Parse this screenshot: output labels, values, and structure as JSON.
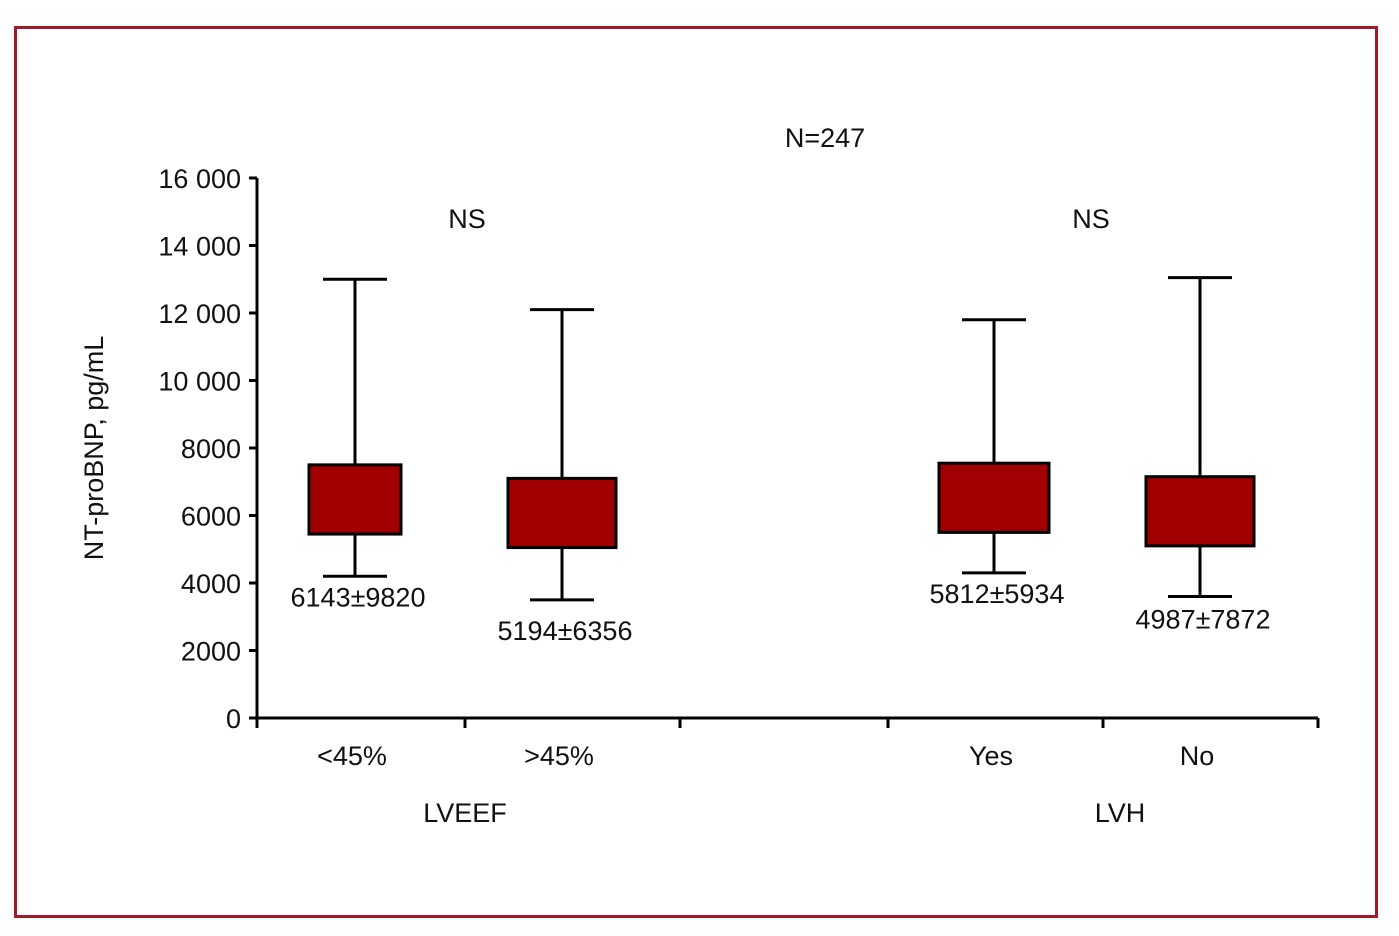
{
  "chart_data": {
    "type": "boxplot",
    "title": "N=247",
    "ylabel": "NT-proBNP, pg/mL",
    "xlabel": "",
    "ylim": [
      0,
      16000
    ],
    "y_ticks": [
      0,
      2000,
      4000,
      6000,
      8000,
      10000,
      12000,
      14000,
      16000
    ],
    "y_tick_labels": [
      "0",
      "2000",
      "4000",
      "6000",
      "8000",
      "10 000",
      "12 000",
      "14 000",
      "16 000"
    ],
    "grid": false,
    "box_color": "#a00000",
    "frame_color": "#a0192a",
    "groups": [
      {
        "name": "LVEEF",
        "significance": "NS"
      },
      {
        "name": "LVH",
        "significance": "NS"
      }
    ],
    "boxes": [
      {
        "category": "<45%",
        "group": "LVEEF",
        "whisker_low": 4200,
        "q1": 5450,
        "q3": 7500,
        "whisker_high": 13000,
        "label": "6143±9820"
      },
      {
        "category": ">45%",
        "group": "LVEEF",
        "whisker_low": 3500,
        "q1": 5050,
        "q3": 7100,
        "whisker_high": 12100,
        "label": "5194±6356"
      },
      {
        "category": "Yes",
        "group": "LVH",
        "whisker_low": 4300,
        "q1": 5500,
        "q3": 7550,
        "whisker_high": 11800,
        "label": "5812±5934"
      },
      {
        "category": "No",
        "group": "LVH",
        "whisker_low": 3600,
        "q1": 5100,
        "q3": 7150,
        "whisker_high": 13050,
        "label": "4987±7872"
      }
    ]
  }
}
